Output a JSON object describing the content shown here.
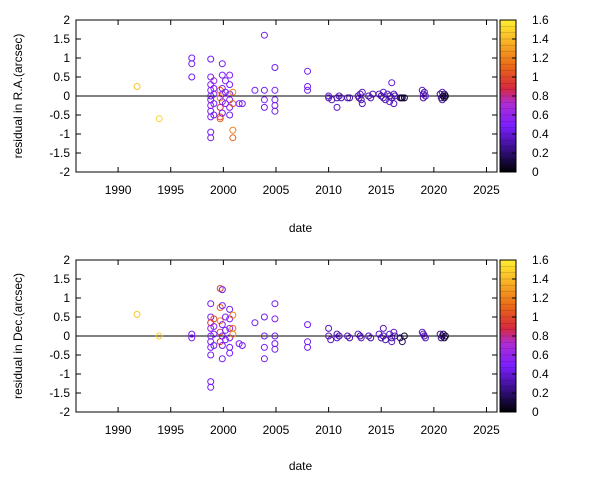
{
  "chart_data": [
    {
      "type": "scatter",
      "xlabel": "date",
      "ylabel": "residual in R.A.(arcsec)",
      "xlim": [
        1986,
        2026
      ],
      "ylim": [
        -2,
        2
      ],
      "xticks": [
        "1990",
        "1995",
        "2000",
        "2005",
        "2010",
        "2015",
        "2020",
        "2025"
      ],
      "yticks": [
        "2",
        "1.5",
        "1",
        "0.5",
        "0",
        "-0.5",
        "-1",
        "-1.5",
        "-2"
      ],
      "colorbar": {
        "min": 0,
        "max": 1.6,
        "ticks": [
          "1.6",
          "1.4",
          "1.2",
          "1",
          "0.8",
          "0.6",
          "0.4",
          "0.2",
          "0"
        ]
      },
      "zero_line": true,
      "grid": false,
      "points": [
        {
          "x": 1991.8,
          "y": 0.25,
          "c": 1.45
        },
        {
          "x": 1993.9,
          "y": -0.6,
          "c": 1.5
        },
        {
          "x": 1997.0,
          "y": 1.0,
          "c": 0.45
        },
        {
          "x": 1997.0,
          "y": 0.85,
          "c": 0.45
        },
        {
          "x": 1997.0,
          "y": 0.5,
          "c": 0.45
        },
        {
          "x": 1998.8,
          "y": 0.97,
          "c": 0.45
        },
        {
          "x": 1998.8,
          "y": 0.5,
          "c": 0.5
        },
        {
          "x": 1998.8,
          "y": 0.3,
          "c": 0.55
        },
        {
          "x": 1998.8,
          "y": 0.15,
          "c": 0.5
        },
        {
          "x": 1998.8,
          "y": 0.0,
          "c": 0.45
        },
        {
          "x": 1998.8,
          "y": -0.1,
          "c": 0.4
        },
        {
          "x": 1998.8,
          "y": -0.25,
          "c": 0.55
        },
        {
          "x": 1998.8,
          "y": -0.4,
          "c": 0.45
        },
        {
          "x": 1998.8,
          "y": -0.55,
          "c": 0.5
        },
        {
          "x": 1998.8,
          "y": -0.95,
          "c": 0.45
        },
        {
          "x": 1998.8,
          "y": -1.1,
          "c": 0.45
        },
        {
          "x": 1999.1,
          "y": 0.4,
          "c": 0.6
        },
        {
          "x": 1999.1,
          "y": 0.2,
          "c": 0.5
        },
        {
          "x": 1999.1,
          "y": 0.05,
          "c": 0.55
        },
        {
          "x": 1999.1,
          "y": -0.2,
          "c": 0.5
        },
        {
          "x": 1999.1,
          "y": -0.5,
          "c": 0.45
        },
        {
          "x": 1999.7,
          "y": 0.15,
          "c": 1.1
        },
        {
          "x": 1999.7,
          "y": -0.05,
          "c": 1.2
        },
        {
          "x": 1999.7,
          "y": -0.3,
          "c": 0.9
        },
        {
          "x": 1999.7,
          "y": -0.55,
          "c": 1.0
        },
        {
          "x": 1999.7,
          "y": -0.6,
          "c": 1.1
        },
        {
          "x": 1999.9,
          "y": 0.85,
          "c": 0.45
        },
        {
          "x": 1999.9,
          "y": 0.55,
          "c": 0.5
        },
        {
          "x": 1999.9,
          "y": 0.2,
          "c": 0.55
        },
        {
          "x": 1999.9,
          "y": 0.05,
          "c": 0.6
        },
        {
          "x": 1999.9,
          "y": -0.15,
          "c": 0.5
        },
        {
          "x": 1999.9,
          "y": -0.45,
          "c": 0.45
        },
        {
          "x": 2000.2,
          "y": 0.4,
          "c": 0.5
        },
        {
          "x": 2000.2,
          "y": 0.1,
          "c": 0.45
        },
        {
          "x": 2000.2,
          "y": -0.2,
          "c": 0.55
        },
        {
          "x": 2000.6,
          "y": 0.55,
          "c": 0.5
        },
        {
          "x": 2000.6,
          "y": 0.3,
          "c": 0.5
        },
        {
          "x": 2000.6,
          "y": 0.05,
          "c": 0.55
        },
        {
          "x": 2000.6,
          "y": -0.1,
          "c": 0.5
        },
        {
          "x": 2000.6,
          "y": -0.3,
          "c": 0.5
        },
        {
          "x": 2000.6,
          "y": -0.5,
          "c": 0.45
        },
        {
          "x": 2000.9,
          "y": 0.1,
          "c": 1.2
        },
        {
          "x": 2000.9,
          "y": -0.2,
          "c": 1.1
        },
        {
          "x": 2000.9,
          "y": -0.9,
          "c": 1.2
        },
        {
          "x": 2000.9,
          "y": -1.1,
          "c": 1.1
        },
        {
          "x": 2001.5,
          "y": -0.2,
          "c": 0.5
        },
        {
          "x": 2001.8,
          "y": -0.2,
          "c": 0.45
        },
        {
          "x": 2003.0,
          "y": 0.15,
          "c": 0.45
        },
        {
          "x": 2003.9,
          "y": 1.6,
          "c": 0.45
        },
        {
          "x": 2003.9,
          "y": 0.15,
          "c": 0.45
        },
        {
          "x": 2003.9,
          "y": -0.1,
          "c": 0.5
        },
        {
          "x": 2003.9,
          "y": -0.3,
          "c": 0.45
        },
        {
          "x": 2004.9,
          "y": 0.75,
          "c": 0.45
        },
        {
          "x": 2004.9,
          "y": 0.15,
          "c": 0.5
        },
        {
          "x": 2004.9,
          "y": -0.1,
          "c": 0.45
        },
        {
          "x": 2004.9,
          "y": -0.25,
          "c": 0.45
        },
        {
          "x": 2004.9,
          "y": -0.4,
          "c": 0.45
        },
        {
          "x": 2008.0,
          "y": 0.65,
          "c": 0.45
        },
        {
          "x": 2008.0,
          "y": 0.25,
          "c": 0.45
        },
        {
          "x": 2008.0,
          "y": 0.15,
          "c": 0.45
        },
        {
          "x": 2010.0,
          "y": 0.0,
          "c": 0.35
        },
        {
          "x": 2010.0,
          "y": -0.05,
          "c": 0.35
        },
        {
          "x": 2010.3,
          "y": -0.1,
          "c": 0.35
        },
        {
          "x": 2010.8,
          "y": -0.05,
          "c": 0.3
        },
        {
          "x": 2010.8,
          "y": -0.3,
          "c": 0.35
        },
        {
          "x": 2011.0,
          "y": 0.0,
          "c": 0.35
        },
        {
          "x": 2011.2,
          "y": -0.05,
          "c": 0.3
        },
        {
          "x": 2011.8,
          "y": -0.05,
          "c": 0.35
        },
        {
          "x": 2012.0,
          "y": -0.05,
          "c": 0.3
        },
        {
          "x": 2012.8,
          "y": 0.0,
          "c": 0.35
        },
        {
          "x": 2012.9,
          "y": -0.05,
          "c": 0.3
        },
        {
          "x": 2013.0,
          "y": 0.05,
          "c": 0.35
        },
        {
          "x": 2013.2,
          "y": 0.1,
          "c": 0.35
        },
        {
          "x": 2013.1,
          "y": -0.1,
          "c": 0.3
        },
        {
          "x": 2013.2,
          "y": -0.2,
          "c": 0.35
        },
        {
          "x": 2013.8,
          "y": 0.0,
          "c": 0.3
        },
        {
          "x": 2014.0,
          "y": -0.05,
          "c": 0.35
        },
        {
          "x": 2014.2,
          "y": 0.05,
          "c": 0.3
        },
        {
          "x": 2014.8,
          "y": 0.05,
          "c": 0.35
        },
        {
          "x": 2015.0,
          "y": 0.0,
          "c": 0.3
        },
        {
          "x": 2015.2,
          "y": -0.05,
          "c": 0.35
        },
        {
          "x": 2015.2,
          "y": 0.1,
          "c": 0.35
        },
        {
          "x": 2015.4,
          "y": -0.1,
          "c": 0.3
        },
        {
          "x": 2015.6,
          "y": 0.05,
          "c": 0.35
        },
        {
          "x": 2015.8,
          "y": 0.0,
          "c": 0.3
        },
        {
          "x": 2015.8,
          "y": -0.15,
          "c": 0.35
        },
        {
          "x": 2016.0,
          "y": 0.35,
          "c": 0.4
        },
        {
          "x": 2016.0,
          "y": -0.05,
          "c": 0.3
        },
        {
          "x": 2016.2,
          "y": 0.05,
          "c": 0.35
        },
        {
          "x": 2016.2,
          "y": -0.2,
          "c": 0.35
        },
        {
          "x": 2016.3,
          "y": 0.0,
          "c": 0.3
        },
        {
          "x": 2016.8,
          "y": -0.05,
          "c": 0.2
        },
        {
          "x": 2016.9,
          "y": -0.05,
          "c": 0.15
        },
        {
          "x": 2017.0,
          "y": -0.05,
          "c": 0.1
        },
        {
          "x": 2017.2,
          "y": -0.05,
          "c": 0.05
        },
        {
          "x": 2018.9,
          "y": 0.15,
          "c": 0.35
        },
        {
          "x": 2019.0,
          "y": 0.05,
          "c": 0.35
        },
        {
          "x": 2019.1,
          "y": 0.1,
          "c": 0.3
        },
        {
          "x": 2019.2,
          "y": 0.0,
          "c": 0.35
        },
        {
          "x": 2019.0,
          "y": -0.05,
          "c": 0.3
        },
        {
          "x": 2020.6,
          "y": 0.05,
          "c": 0.2
        },
        {
          "x": 2020.7,
          "y": -0.05,
          "c": 0.25
        },
        {
          "x": 2020.8,
          "y": 0.1,
          "c": 0.35
        },
        {
          "x": 2020.8,
          "y": -0.1,
          "c": 0.3
        },
        {
          "x": 2020.9,
          "y": 0.0,
          "c": 0.15
        },
        {
          "x": 2021.0,
          "y": 0.05,
          "c": 0.2
        },
        {
          "x": 2021.0,
          "y": -0.05,
          "c": 0.1
        },
        {
          "x": 2021.1,
          "y": 0.0,
          "c": 0.05
        }
      ]
    },
    {
      "type": "scatter",
      "xlabel": "date",
      "ylabel": "residual in Dec.(arcsec)",
      "xlim": [
        1986,
        2026
      ],
      "ylim": [
        -2,
        2
      ],
      "xticks": [
        "1990",
        "1995",
        "2000",
        "2005",
        "2010",
        "2015",
        "2020",
        "2025"
      ],
      "yticks": [
        "2",
        "1.5",
        "1",
        "0.5",
        "0",
        "-0.5",
        "-1",
        "-1.5",
        "-2"
      ],
      "colorbar": {
        "min": 0,
        "max": 1.6,
        "ticks": [
          "1.6",
          "1.4",
          "1.2",
          "1",
          "0.8",
          "0.6",
          "0.4",
          "0.2",
          "0"
        ]
      },
      "zero_line": true,
      "grid": false,
      "points": [
        {
          "x": 1991.8,
          "y": 0.57,
          "c": 1.45
        },
        {
          "x": 1993.9,
          "y": 0.0,
          "c": 1.5
        },
        {
          "x": 1997.0,
          "y": 0.05,
          "c": 0.45
        },
        {
          "x": 1997.0,
          "y": -0.05,
          "c": 0.5
        },
        {
          "x": 1998.8,
          "y": 0.85,
          "c": 0.45
        },
        {
          "x": 1998.8,
          "y": 0.5,
          "c": 0.5
        },
        {
          "x": 1998.8,
          "y": 0.35,
          "c": 0.9
        },
        {
          "x": 1998.8,
          "y": 0.2,
          "c": 0.55
        },
        {
          "x": 1998.8,
          "y": 0.0,
          "c": 0.5
        },
        {
          "x": 1998.8,
          "y": -0.15,
          "c": 0.45
        },
        {
          "x": 1998.8,
          "y": -0.3,
          "c": 0.5
        },
        {
          "x": 1998.8,
          "y": -0.5,
          "c": 0.45
        },
        {
          "x": 1998.8,
          "y": -1.2,
          "c": 0.45
        },
        {
          "x": 1998.8,
          "y": -1.35,
          "c": 0.45
        },
        {
          "x": 1999.1,
          "y": 0.45,
          "c": 1.0
        },
        {
          "x": 1999.1,
          "y": 0.25,
          "c": 0.55
        },
        {
          "x": 1999.1,
          "y": 0.05,
          "c": 0.5
        },
        {
          "x": 1999.1,
          "y": -0.25,
          "c": 0.45
        },
        {
          "x": 1999.7,
          "y": 1.25,
          "c": 1.0
        },
        {
          "x": 1999.7,
          "y": 0.75,
          "c": 1.1
        },
        {
          "x": 1999.7,
          "y": 0.4,
          "c": 1.2
        },
        {
          "x": 1999.7,
          "y": 0.1,
          "c": 1.0
        },
        {
          "x": 1999.7,
          "y": -0.15,
          "c": 0.9
        },
        {
          "x": 1999.9,
          "y": 1.22,
          "c": 0.45
        },
        {
          "x": 1999.9,
          "y": 0.8,
          "c": 0.5
        },
        {
          "x": 1999.9,
          "y": 0.3,
          "c": 0.5
        },
        {
          "x": 1999.9,
          "y": 0.0,
          "c": 0.5
        },
        {
          "x": 1999.9,
          "y": -0.25,
          "c": 0.45
        },
        {
          "x": 1999.9,
          "y": -0.6,
          "c": 0.45
        },
        {
          "x": 2000.2,
          "y": 0.5,
          "c": 0.5
        },
        {
          "x": 2000.2,
          "y": 0.15,
          "c": 0.45
        },
        {
          "x": 2000.2,
          "y": -0.1,
          "c": 0.5
        },
        {
          "x": 2000.6,
          "y": 0.7,
          "c": 0.45
        },
        {
          "x": 2000.6,
          "y": 0.45,
          "c": 0.5
        },
        {
          "x": 2000.6,
          "y": 0.2,
          "c": 0.55
        },
        {
          "x": 2000.6,
          "y": -0.05,
          "c": 0.5
        },
        {
          "x": 2000.6,
          "y": -0.3,
          "c": 0.45
        },
        {
          "x": 2000.6,
          "y": -0.45,
          "c": 0.5
        },
        {
          "x": 2000.9,
          "y": 0.55,
          "c": 1.2
        },
        {
          "x": 2000.9,
          "y": 0.2,
          "c": 1.1
        },
        {
          "x": 2000.9,
          "y": 0.05,
          "c": 1.25
        },
        {
          "x": 2001.5,
          "y": -0.2,
          "c": 0.5
        },
        {
          "x": 2001.8,
          "y": -0.25,
          "c": 0.45
        },
        {
          "x": 2003.0,
          "y": 0.35,
          "c": 0.45
        },
        {
          "x": 2003.9,
          "y": 0.5,
          "c": 0.45
        },
        {
          "x": 2003.9,
          "y": 0.0,
          "c": 0.45
        },
        {
          "x": 2003.9,
          "y": -0.3,
          "c": 0.5
        },
        {
          "x": 2003.9,
          "y": -0.6,
          "c": 0.45
        },
        {
          "x": 2004.9,
          "y": 0.85,
          "c": 0.45
        },
        {
          "x": 2004.9,
          "y": 0.45,
          "c": 0.5
        },
        {
          "x": 2004.9,
          "y": 0.0,
          "c": 0.45
        },
        {
          "x": 2004.9,
          "y": -0.2,
          "c": 0.45
        },
        {
          "x": 2004.9,
          "y": -0.35,
          "c": 0.45
        },
        {
          "x": 2008.0,
          "y": 0.3,
          "c": 0.45
        },
        {
          "x": 2008.0,
          "y": -0.15,
          "c": 0.45
        },
        {
          "x": 2008.0,
          "y": -0.3,
          "c": 0.45
        },
        {
          "x": 2010.0,
          "y": 0.2,
          "c": 0.35
        },
        {
          "x": 2010.0,
          "y": 0.0,
          "c": 0.35
        },
        {
          "x": 2010.2,
          "y": -0.1,
          "c": 0.35
        },
        {
          "x": 2010.8,
          "y": 0.05,
          "c": 0.3
        },
        {
          "x": 2010.8,
          "y": -0.05,
          "c": 0.35
        },
        {
          "x": 2011.0,
          "y": 0.0,
          "c": 0.35
        },
        {
          "x": 2011.8,
          "y": 0.0,
          "c": 0.35
        },
        {
          "x": 2012.0,
          "y": -0.05,
          "c": 0.3
        },
        {
          "x": 2012.8,
          "y": 0.05,
          "c": 0.35
        },
        {
          "x": 2013.0,
          "y": 0.0,
          "c": 0.3
        },
        {
          "x": 2013.1,
          "y": -0.05,
          "c": 0.35
        },
        {
          "x": 2013.8,
          "y": 0.0,
          "c": 0.35
        },
        {
          "x": 2014.0,
          "y": -0.05,
          "c": 0.3
        },
        {
          "x": 2014.8,
          "y": 0.05,
          "c": 0.35
        },
        {
          "x": 2015.0,
          "y": -0.05,
          "c": 0.3
        },
        {
          "x": 2015.2,
          "y": 0.2,
          "c": 0.35
        },
        {
          "x": 2015.2,
          "y": 0.0,
          "c": 0.35
        },
        {
          "x": 2015.4,
          "y": -0.1,
          "c": 0.3
        },
        {
          "x": 2015.8,
          "y": 0.05,
          "c": 0.35
        },
        {
          "x": 2016.0,
          "y": -0.05,
          "c": 0.3
        },
        {
          "x": 2016.0,
          "y": -0.15,
          "c": 0.35
        },
        {
          "x": 2016.2,
          "y": 0.1,
          "c": 0.35
        },
        {
          "x": 2016.3,
          "y": 0.0,
          "c": 0.3
        },
        {
          "x": 2016.8,
          "y": -0.05,
          "c": 0.2
        },
        {
          "x": 2017.0,
          "y": -0.15,
          "c": 0.15
        },
        {
          "x": 2017.2,
          "y": 0.0,
          "c": 0.05
        },
        {
          "x": 2018.9,
          "y": 0.1,
          "c": 0.35
        },
        {
          "x": 2019.0,
          "y": 0.05,
          "c": 0.35
        },
        {
          "x": 2019.1,
          "y": 0.0,
          "c": 0.3
        },
        {
          "x": 2019.2,
          "y": -0.05,
          "c": 0.35
        },
        {
          "x": 2020.6,
          "y": 0.05,
          "c": 0.25
        },
        {
          "x": 2020.7,
          "y": -0.05,
          "c": 0.2
        },
        {
          "x": 2020.8,
          "y": 0.0,
          "c": 0.35
        },
        {
          "x": 2020.9,
          "y": 0.05,
          "c": 0.15
        },
        {
          "x": 2021.0,
          "y": -0.05,
          "c": 0.1
        },
        {
          "x": 2021.1,
          "y": 0.0,
          "c": 0.05
        }
      ]
    }
  ]
}
